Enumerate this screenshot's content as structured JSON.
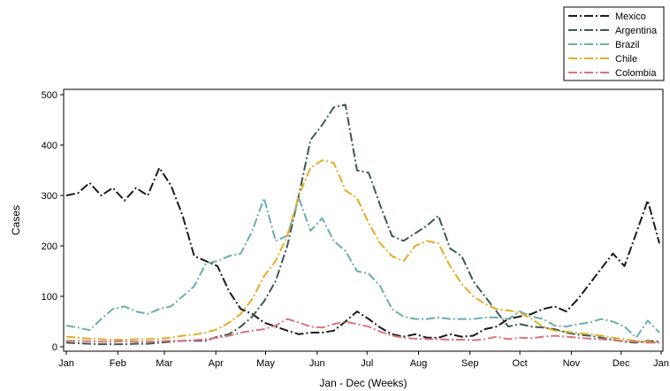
{
  "chart_data": {
    "type": "line",
    "xlabel": "Jan - Dec (Weeks)",
    "ylabel": "Cases",
    "ylim": [
      0,
      500
    ],
    "yticks": [
      0,
      100,
      200,
      300,
      400,
      500
    ],
    "xlim": [
      0,
      51
    ],
    "xticks": [
      {
        "label": "Jan",
        "week": 0
      },
      {
        "label": "Feb",
        "week": 4.43
      },
      {
        "label": "Mar",
        "week": 8.43
      },
      {
        "label": "Apr",
        "week": 12.86
      },
      {
        "label": "May",
        "week": 17.14
      },
      {
        "label": "Jun",
        "week": 21.57
      },
      {
        "label": "Jul",
        "week": 25.86
      },
      {
        "label": "Aug",
        "week": 30.29
      },
      {
        "label": "Sep",
        "week": 34.71
      },
      {
        "label": "Oct",
        "week": 39.0
      },
      {
        "label": "Nov",
        "week": 43.43
      },
      {
        "label": "Dec",
        "week": 47.71
      },
      {
        "label": "Jan",
        "week": 52.14
      }
    ],
    "legend_position": "top-right",
    "x": [
      0,
      1,
      2,
      3,
      4,
      5,
      6,
      7,
      8,
      9,
      10,
      11,
      12,
      13,
      14,
      15,
      16,
      17,
      18,
      19,
      20,
      21,
      22,
      23,
      24,
      25,
      26,
      27,
      28,
      29,
      30,
      31,
      32,
      33,
      34,
      35,
      36,
      37,
      38,
      39,
      40,
      41,
      42,
      43,
      44,
      45,
      46,
      47,
      48,
      49,
      50,
      51
    ],
    "series": [
      {
        "name": "Mexico",
        "color": "#1a1a1a",
        "dash": "10,3,2,3",
        "values": [
          300,
          305,
          325,
          300,
          315,
          290,
          315,
          300,
          355,
          320,
          260,
          180,
          170,
          160,
          110,
          75,
          65,
          48,
          40,
          32,
          25,
          28,
          28,
          32,
          50,
          70,
          55,
          38,
          25,
          20,
          25,
          18,
          18,
          25,
          20,
          22,
          35,
          40,
          55,
          60,
          65,
          75,
          80,
          70,
          95,
          125,
          155,
          185,
          160,
          225,
          290,
          205
        ]
      },
      {
        "name": "Argentina",
        "color": "#3d5a56",
        "dash": "10,3,2,3",
        "values": [
          8,
          7,
          6,
          5,
          5,
          5,
          6,
          6,
          8,
          10,
          12,
          12,
          12,
          20,
          25,
          40,
          60,
          90,
          130,
          200,
          300,
          410,
          440,
          475,
          480,
          350,
          345,
          280,
          220,
          210,
          225,
          240,
          260,
          195,
          180,
          130,
          100,
          70,
          40,
          45,
          40,
          38,
          35,
          28,
          24,
          22,
          18,
          14,
          10,
          8,
          12,
          10
        ]
      },
      {
        "name": "Brazil",
        "color": "#6aafaa",
        "dash": "10,3,2,3",
        "values": [
          42,
          38,
          33,
          55,
          75,
          80,
          70,
          65,
          75,
          80,
          100,
          120,
          165,
          170,
          180,
          185,
          230,
          295,
          210,
          220,
          295,
          230,
          255,
          210,
          190,
          150,
          145,
          120,
          75,
          60,
          55,
          55,
          58,
          55,
          55,
          55,
          58,
          58,
          55,
          70,
          60,
          55,
          42,
          40,
          45,
          48,
          55,
          50,
          40,
          18,
          52,
          28
        ]
      },
      {
        "name": "Chile",
        "color": "#e2ad28",
        "dash": "10,3,2,3",
        "values": [
          20,
          18,
          16,
          15,
          14,
          14,
          15,
          15,
          16,
          18,
          22,
          24,
          28,
          35,
          48,
          65,
          95,
          140,
          170,
          220,
          300,
          355,
          370,
          365,
          310,
          295,
          245,
          205,
          180,
          170,
          200,
          210,
          205,
          160,
          125,
          100,
          85,
          75,
          72,
          68,
          55,
          40,
          32,
          30,
          27,
          25,
          22,
          18,
          15,
          12,
          10,
          8
        ]
      },
      {
        "name": "Colombia",
        "color": "#d9747a",
        "dash": "10,3,2,3",
        "values": [
          12,
          12,
          11,
          10,
          10,
          11,
          10,
          10,
          11,
          12,
          12,
          13,
          15,
          18,
          22,
          28,
          32,
          35,
          42,
          55,
          48,
          40,
          38,
          45,
          50,
          45,
          40,
          30,
          22,
          18,
          16,
          15,
          15,
          14,
          14,
          13,
          15,
          20,
          15,
          18,
          17,
          20,
          22,
          20,
          18,
          16,
          15,
          13,
          11,
          10,
          8,
          8
        ]
      }
    ]
  }
}
